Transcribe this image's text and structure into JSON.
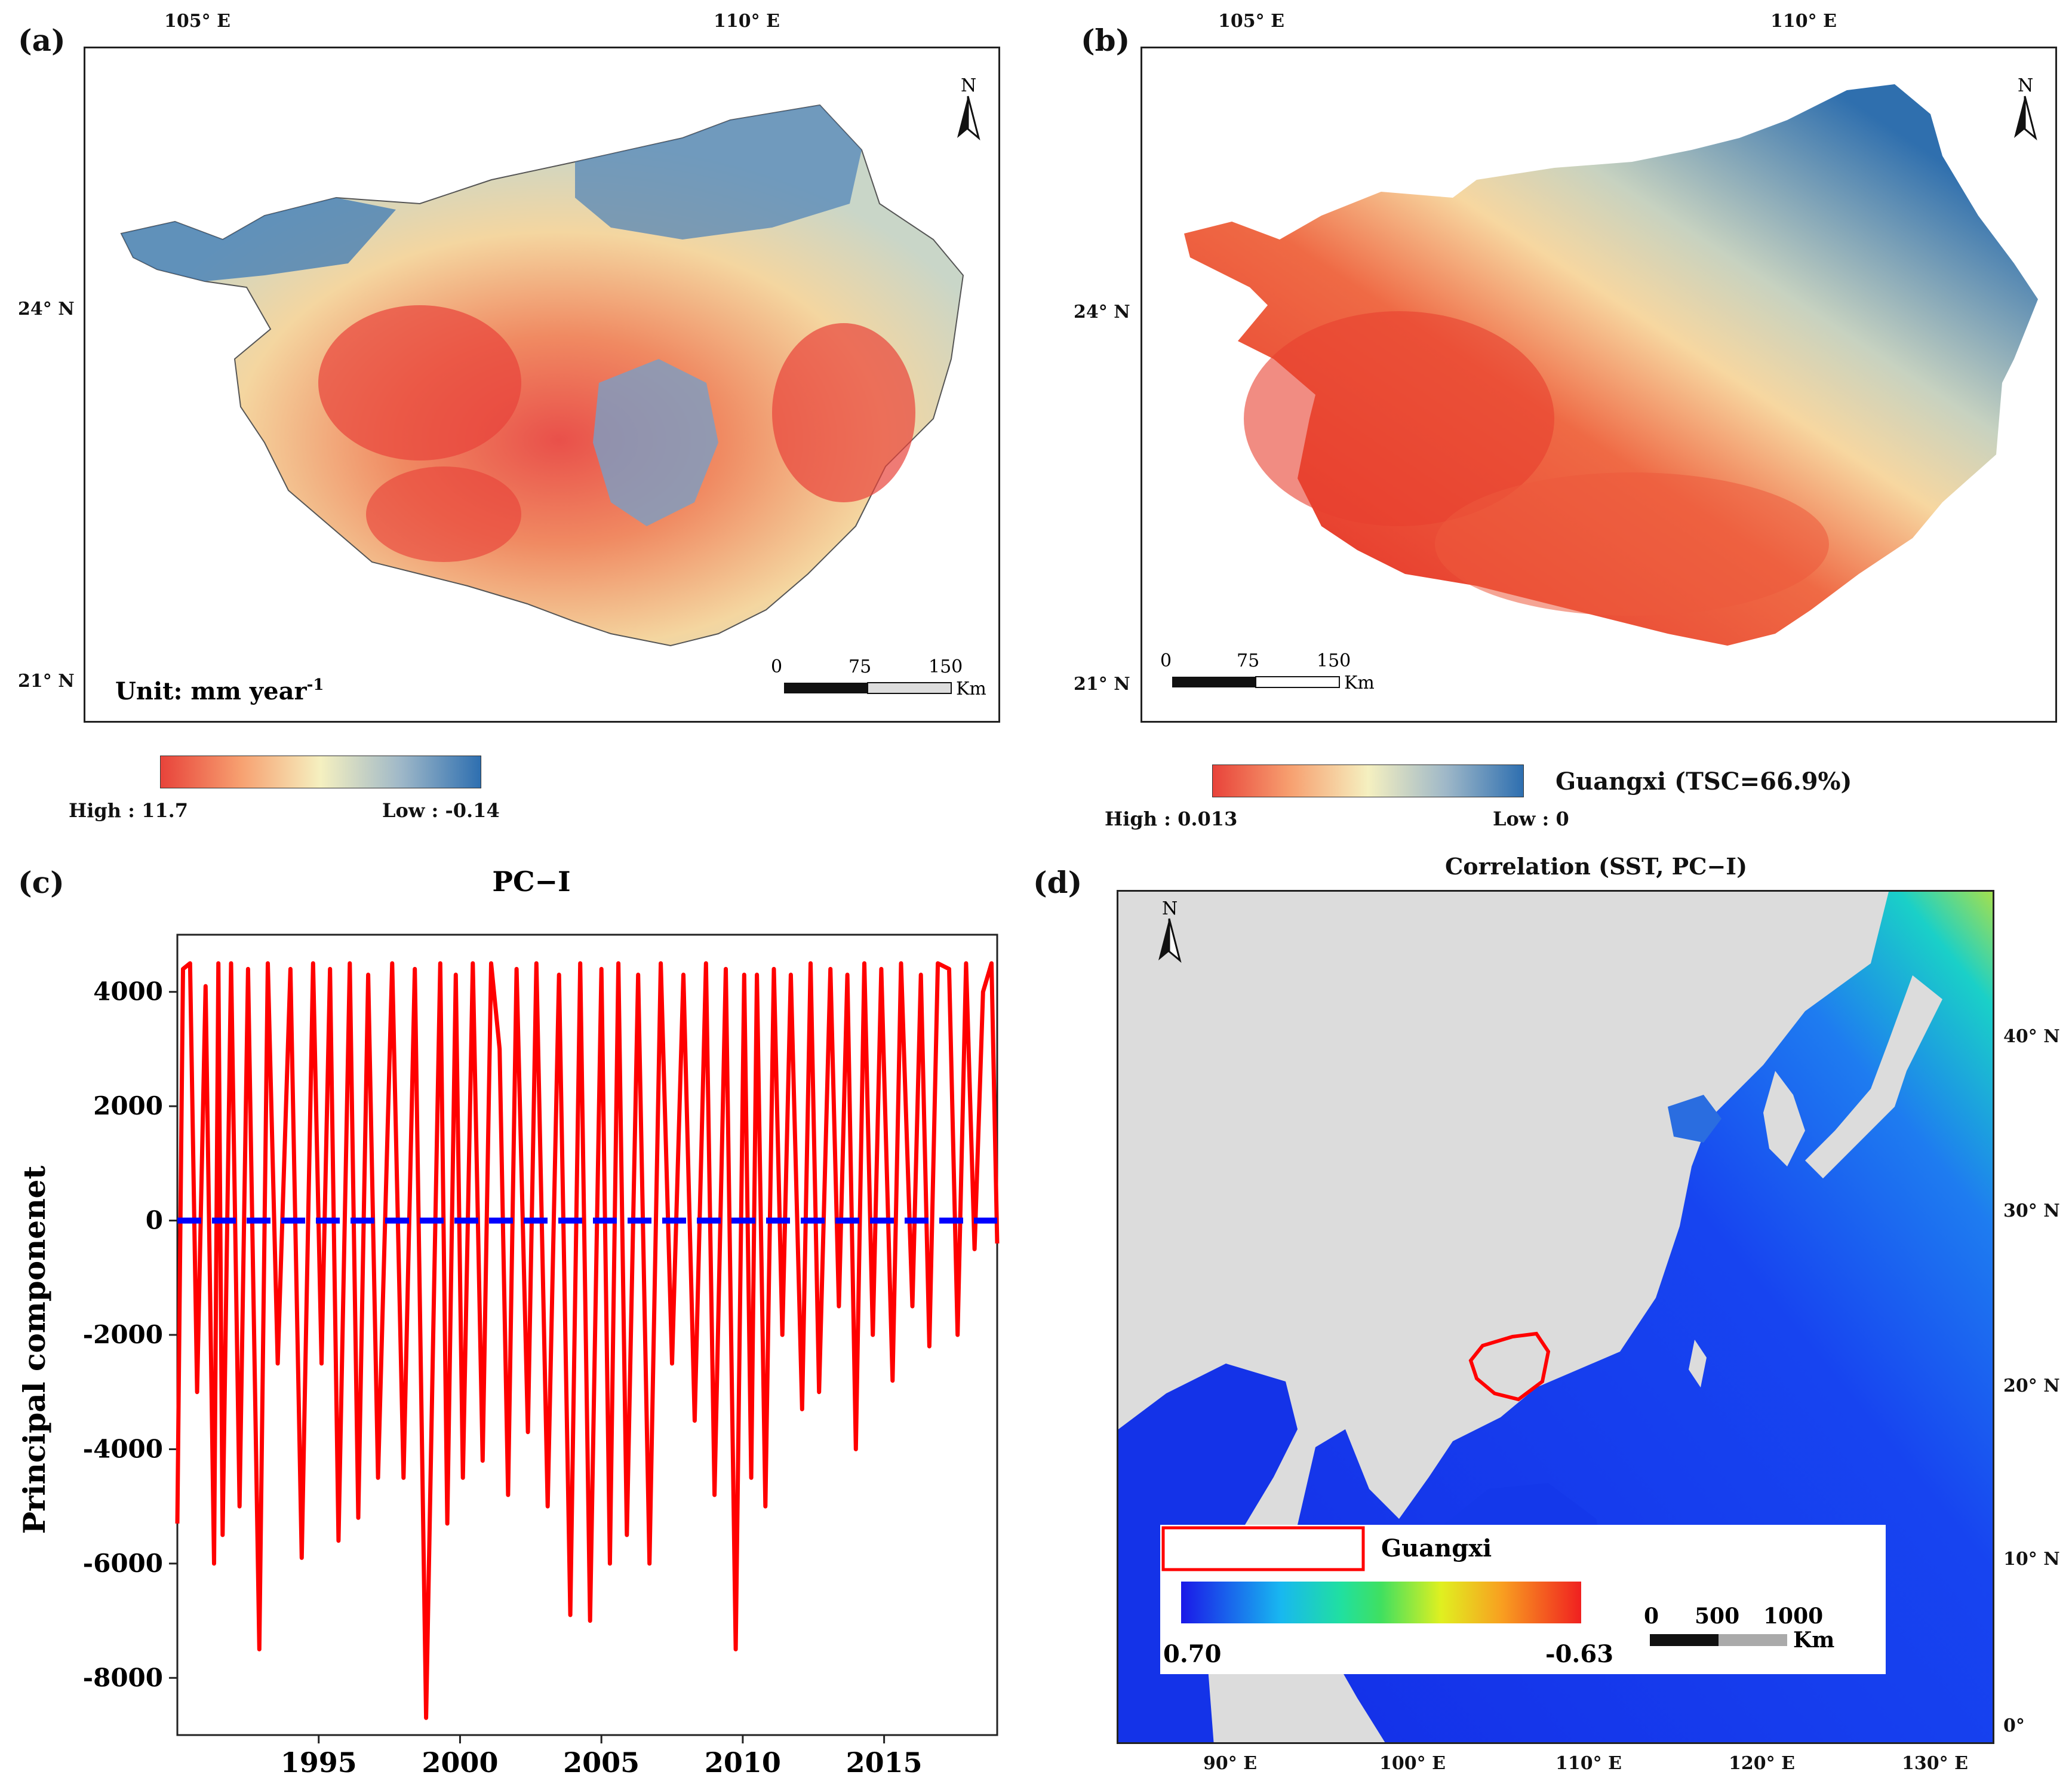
{
  "panels": {
    "a": {
      "letter": "(a)",
      "lon_ticks": [
        "105° E",
        "110° E"
      ],
      "lat_ticks": [
        "24° N",
        "21° N"
      ],
      "north": "N",
      "unit_label": "Unit: mm year",
      "unit_exponent": "-1",
      "scale": {
        "ticks": [
          "0",
          "75",
          "150"
        ],
        "unit": "Km"
      },
      "legend": {
        "high": "High : 11.7",
        "low": "Low : -0.14",
        "colors": [
          "#e8433a",
          "#f7a070",
          "#f5f0c0",
          "#9fb8c8",
          "#2e6fb0"
        ]
      }
    },
    "b": {
      "letter": "(b)",
      "lon_ticks": [
        "105° E",
        "110° E"
      ],
      "lat_ticks": [
        "24° N",
        "21° N"
      ],
      "north": "N",
      "scale": {
        "ticks": [
          "0",
          "75",
          "150"
        ],
        "unit": "Km"
      },
      "legend": {
        "high": "High : 0.013",
        "low": "Low : 0",
        "title": "Guangxi (TSC=66.9%)",
        "colors": [
          "#e8433a",
          "#f7a070",
          "#f5f0c0",
          "#9fb8c8",
          "#2e6fb0"
        ]
      }
    },
    "c": {
      "letter": "(c)"
    },
    "d": {
      "letter": "(d)",
      "title": "Correlation (SST, PC−I)",
      "lon_ticks": [
        "90° E",
        "100° E",
        "110° E",
        "120° E",
        "130° E"
      ],
      "lat_ticks": [
        "40° N",
        "30° N",
        "20° N",
        "10° N",
        "0°"
      ],
      "north": "N",
      "legend": {
        "region_label": "Guangxi",
        "high": "0.70",
        "low": "-0.63",
        "scale_ticks": [
          "0",
          "500",
          "1000"
        ],
        "scale_unit": "Km"
      }
    }
  },
  "chart_data": {
    "type": "line",
    "title": "PC−I",
    "xlabel": "",
    "ylabel": "Principal componenet",
    "xlim": [
      1990.0,
      2019.0
    ],
    "ylim": [
      -9000,
      5000
    ],
    "x_ticks": [
      1995,
      2000,
      2005,
      2010,
      2015
    ],
    "y_ticks": [
      4000,
      2000,
      0,
      -2000,
      -4000,
      -6000,
      -8000
    ],
    "series": [
      {
        "name": "PC-I",
        "color": "#ff0000",
        "x": [
          1990.0,
          1990.2,
          1990.45,
          1990.7,
          1991.0,
          1991.3,
          1991.45,
          1991.6,
          1991.9,
          1992.2,
          1992.5,
          1992.9,
          1993.2,
          1993.55,
          1994.0,
          1994.4,
          1994.8,
          1995.1,
          1995.4,
          1995.7,
          1996.1,
          1996.4,
          1996.75,
          1997.1,
          1997.6,
          1998.0,
          1998.4,
          1998.8,
          1999.05,
          1999.3,
          1999.55,
          1999.85,
          2000.1,
          2000.45,
          2000.8,
          2001.1,
          2001.4,
          2001.7,
          2002.0,
          2002.4,
          2002.7,
          2003.1,
          2003.5,
          2003.9,
          2004.25,
          2004.6,
          2005.0,
          2005.3,
          2005.6,
          2005.9,
          2006.3,
          2006.7,
          2007.1,
          2007.5,
          2007.9,
          2008.3,
          2008.7,
          2009.0,
          2009.4,
          2009.75,
          2010.05,
          2010.3,
          2010.5,
          2010.8,
          2011.1,
          2011.4,
          2011.7,
          2012.1,
          2012.4,
          2012.7,
          2013.1,
          2013.4,
          2013.7,
          2014.0,
          2014.3,
          2014.6,
          2014.9,
          2015.3,
          2015.6,
          2016.0,
          2016.3,
          2016.6,
          2016.9,
          2017.3,
          2017.6,
          2017.9,
          2018.2,
          2018.5,
          2018.8,
          2019.0
        ],
        "y": [
          -5300,
          4400,
          4500,
          -3000,
          4100,
          -6000,
          4500,
          -5500,
          4500,
          -5000,
          4400,
          -7500,
          4500,
          -2500,
          4400,
          -5900,
          4500,
          -2500,
          4400,
          -5600,
          4500,
          -5200,
          4300,
          -4500,
          4500,
          -4500,
          4400,
          -8700,
          -2000,
          4500,
          -5300,
          4300,
          -4500,
          4500,
          -4200,
          4500,
          3000,
          -4800,
          4400,
          -3700,
          4500,
          -5000,
          4300,
          -6900,
          4500,
          -7000,
          4400,
          -6000,
          4500,
          -5500,
          4300,
          -6000,
          4500,
          -2500,
          4300,
          -3500,
          4500,
          -4800,
          4400,
          -7500,
          4300,
          -4500,
          4300,
          -5000,
          4400,
          -2000,
          4300,
          -3300,
          4500,
          -3000,
          4400,
          -1500,
          4300,
          -4000,
          4500,
          -2000,
          4400,
          -2800,
          4500,
          -1500,
          4300,
          -2200,
          4500,
          4400,
          -2000,
          4500,
          -500,
          4000,
          4500,
          -400
        ]
      },
      {
        "name": "zero line",
        "color": "#0000ff",
        "style": "dashed",
        "x": [
          1990.0,
          2019.0
        ],
        "y": [
          0,
          0
        ]
      }
    ]
  }
}
